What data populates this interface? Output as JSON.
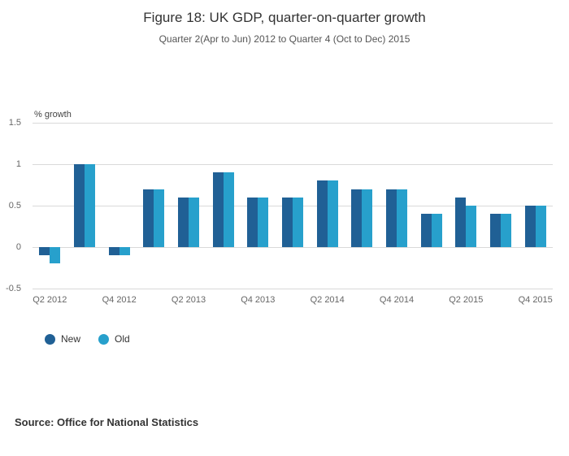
{
  "chart_data": {
    "type": "bar",
    "title": "Figure 18: UK GDP, quarter-on-quarter growth",
    "subtitle": "Quarter 2(Apr to Jun) 2012 to Quarter 4 (Oct to Dec) 2015",
    "ylabel": "% growth",
    "xlabel": "",
    "ylim": [
      -0.5,
      1.5
    ],
    "yticks": [
      -0.5,
      0,
      0.5,
      1,
      1.5
    ],
    "grid": "horizontal",
    "legend_position": "bottom-left",
    "categories": [
      "Q2 2012",
      "Q3 2012",
      "Q4 2012",
      "Q1 2013",
      "Q2 2013",
      "Q3 2013",
      "Q4 2013",
      "Q1 2014",
      "Q2 2014",
      "Q3 2014",
      "Q4 2014",
      "Q1 2015",
      "Q2 2015",
      "Q3 2015",
      "Q4 2015"
    ],
    "x_ticks": [
      {
        "index": 0,
        "label": "Q2 2012"
      },
      {
        "index": 2,
        "label": "Q4 2012"
      },
      {
        "index": 4,
        "label": "Q2 2013"
      },
      {
        "index": 6,
        "label": "Q4 2013"
      },
      {
        "index": 8,
        "label": "Q2 2014"
      },
      {
        "index": 10,
        "label": "Q4 2014"
      },
      {
        "index": 12,
        "label": "Q2 2015"
      },
      {
        "index": 14,
        "label": "Q4 2015"
      }
    ],
    "series": [
      {
        "name": "New",
        "color": "#206095",
        "values": [
          -0.1,
          1.0,
          -0.1,
          0.7,
          0.6,
          0.9,
          0.6,
          0.6,
          0.8,
          0.7,
          0.7,
          0.4,
          0.6,
          0.4,
          0.5
        ]
      },
      {
        "name": "Old",
        "color": "#27A0CC",
        "values": [
          -0.2,
          1.0,
          -0.1,
          0.7,
          0.6,
          0.9,
          0.6,
          0.6,
          0.8,
          0.7,
          0.7,
          0.4,
          0.5,
          0.4,
          0.5
        ]
      }
    ]
  },
  "source": "Source: Office for National Statistics"
}
